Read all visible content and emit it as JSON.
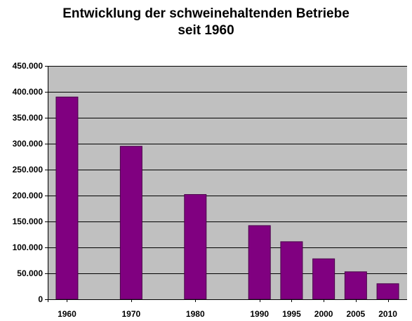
{
  "chart_data": {
    "type": "bar",
    "title": [
      "Entwicklung der schweinehaltenden Betriebe",
      "seit 1960"
    ],
    "xlabel": "",
    "ylabel": "",
    "categories": [
      "1960",
      "1970",
      "1980",
      "1990",
      "1995",
      "2000",
      "2005",
      "2010"
    ],
    "x": [
      1960,
      1970,
      1980,
      1990,
      1995,
      2000,
      2005,
      2010
    ],
    "values": [
      390000,
      295000,
      202000,
      142000,
      111000,
      78000,
      53000,
      30000
    ],
    "ylim": [
      0,
      450000
    ],
    "yticks": [
      0,
      50000,
      100000,
      150000,
      200000,
      250000,
      300000,
      350000,
      400000,
      450000
    ],
    "ytick_labels": [
      "0",
      "50.000",
      "100.000",
      "150.000",
      "200.000",
      "250.000",
      "300.000",
      "350.000",
      "400.000",
      "450.000"
    ],
    "grid": true,
    "legend": "none",
    "colors": {
      "bar": "#800080",
      "plot_background": "#C0C0C0",
      "gridline": "#000000"
    }
  }
}
